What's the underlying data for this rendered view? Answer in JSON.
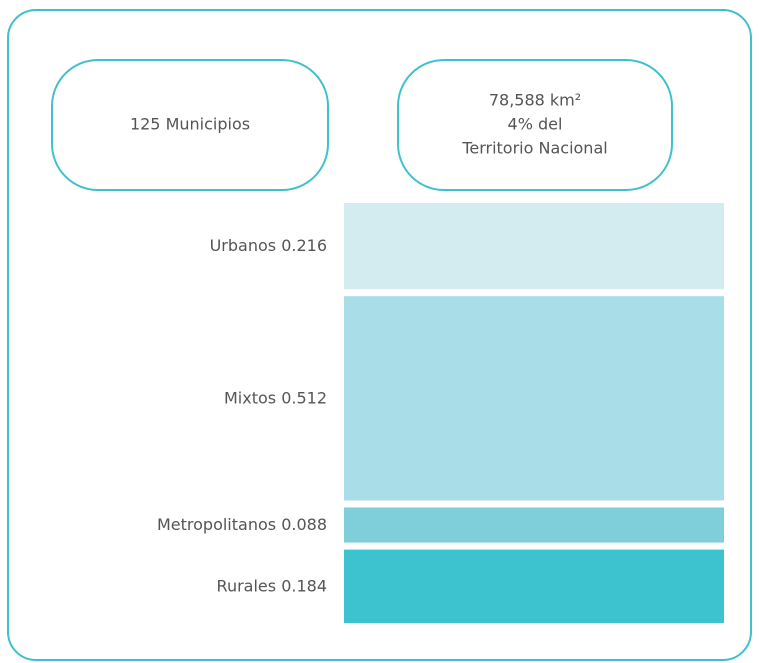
{
  "chart_data": {
    "type": "stacked-column",
    "annotations": [
      "125 Municipios",
      "78,588 km²",
      "4% del",
      "Territorio Nacional"
    ],
    "categories": [
      "Urbanos",
      "Mixtos",
      "Metropolitanos",
      "Rurales"
    ],
    "values": [
      0.216,
      0.512,
      0.088,
      0.184
    ],
    "colors": [
      "#d3ecf0",
      "#a9dde7",
      "#7ecfd9",
      "#3dc3cf"
    ]
  }
}
